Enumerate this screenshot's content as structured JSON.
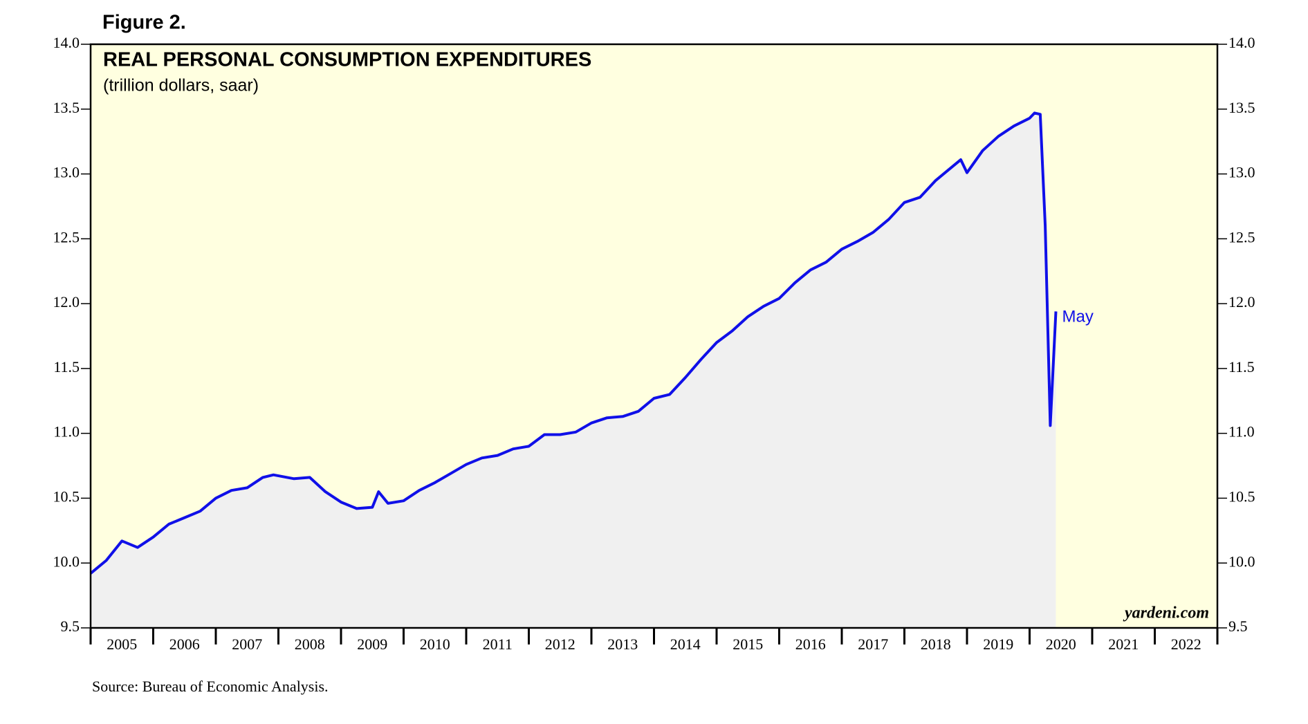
{
  "chart_data": {
    "type": "line",
    "figure_label": "Figure 2.",
    "title": "REAL PERSONAL CONSUMPTION EXPENDITURES",
    "subtitle": "(trillion dollars, saar)",
    "source": "Source: Bureau of Economic Analysis.",
    "watermark": "yardeni.com",
    "annotation": "May",
    "x": [
      2005.0,
      2005.25,
      2005.5,
      2005.75,
      2006.0,
      2006.25,
      2006.5,
      2006.75,
      2007.0,
      2007.25,
      2007.5,
      2007.75,
      2007.92,
      2008.25,
      2008.5,
      2008.75,
      2009.0,
      2009.25,
      2009.5,
      2009.6,
      2009.75,
      2010.0,
      2010.25,
      2010.5,
      2010.75,
      2011.0,
      2011.25,
      2011.5,
      2011.75,
      2012.0,
      2012.25,
      2012.5,
      2012.75,
      2013.0,
      2013.25,
      2013.5,
      2013.75,
      2014.0,
      2014.25,
      2014.5,
      2014.75,
      2015.0,
      2015.25,
      2015.5,
      2015.75,
      2016.0,
      2016.25,
      2016.5,
      2016.75,
      2017.0,
      2017.25,
      2017.5,
      2017.75,
      2018.0,
      2018.25,
      2018.5,
      2018.75,
      2018.9,
      2019.0,
      2019.25,
      2019.5,
      2019.75,
      2020.0,
      2020.08,
      2020.17,
      2020.25,
      2020.33,
      2020.42
    ],
    "series": [
      {
        "name": "Real PCE",
        "color": "#1010e8",
        "values": [
          9.92,
          10.02,
          10.17,
          10.12,
          10.2,
          10.3,
          10.35,
          10.4,
          10.5,
          10.56,
          10.58,
          10.66,
          10.68,
          10.65,
          10.66,
          10.55,
          10.47,
          10.42,
          10.43,
          10.55,
          10.46,
          10.48,
          10.56,
          10.62,
          10.69,
          10.76,
          10.81,
          10.83,
          10.88,
          10.9,
          10.99,
          10.99,
          11.01,
          11.08,
          11.12,
          11.13,
          11.17,
          11.27,
          11.3,
          11.43,
          11.57,
          11.7,
          11.79,
          11.9,
          11.98,
          12.04,
          12.16,
          12.26,
          12.32,
          12.42,
          12.48,
          12.55,
          12.65,
          12.78,
          12.82,
          12.95,
          13.05,
          13.11,
          13.01,
          13.18,
          13.29,
          13.37,
          13.43,
          13.47,
          13.46,
          12.6,
          11.06,
          11.94
        ]
      }
    ],
    "xlim": [
      2005,
      2023
    ],
    "xticks": [
      2005,
      2006,
      2007,
      2008,
      2009,
      2010,
      2011,
      2012,
      2013,
      2014,
      2015,
      2016,
      2017,
      2018,
      2019,
      2020,
      2021,
      2022,
      2023
    ],
    "x_tick_labels": [
      {
        "value": 2005.5,
        "label": "2005"
      },
      {
        "value": 2006.5,
        "label": "2006"
      },
      {
        "value": 2007.5,
        "label": "2007"
      },
      {
        "value": 2008.5,
        "label": "2008"
      },
      {
        "value": 2009.5,
        "label": "2009"
      },
      {
        "value": 2010.5,
        "label": "2010"
      },
      {
        "value": 2011.5,
        "label": "2011"
      },
      {
        "value": 2012.5,
        "label": "2012"
      },
      {
        "value": 2013.5,
        "label": "2013"
      },
      {
        "value": 2014.5,
        "label": "2014"
      },
      {
        "value": 2015.5,
        "label": "2015"
      },
      {
        "value": 2016.5,
        "label": "2016"
      },
      {
        "value": 2017.5,
        "label": "2017"
      },
      {
        "value": 2018.5,
        "label": "2018"
      },
      {
        "value": 2019.5,
        "label": "2019"
      },
      {
        "value": 2020.5,
        "label": "2020"
      },
      {
        "value": 2021.5,
        "label": "2021"
      },
      {
        "value": 2022.5,
        "label": "2022"
      }
    ],
    "ylim": [
      9.5,
      14.0
    ],
    "yticks": [
      9.5,
      {
        "value": 10,
        "label": "10.0"
      },
      10.5,
      {
        "value": 11,
        "label": "11.0"
      },
      11.5,
      {
        "value": 12,
        "label": "12.0"
      },
      12.5,
      {
        "value": 13,
        "label": "13.0"
      },
      13.5,
      {
        "value": 14,
        "label": "14.0"
      }
    ],
    "y_on_both_sides": true,
    "plot_background": "#ffffe0",
    "area_fill": "#f0f0f0"
  }
}
